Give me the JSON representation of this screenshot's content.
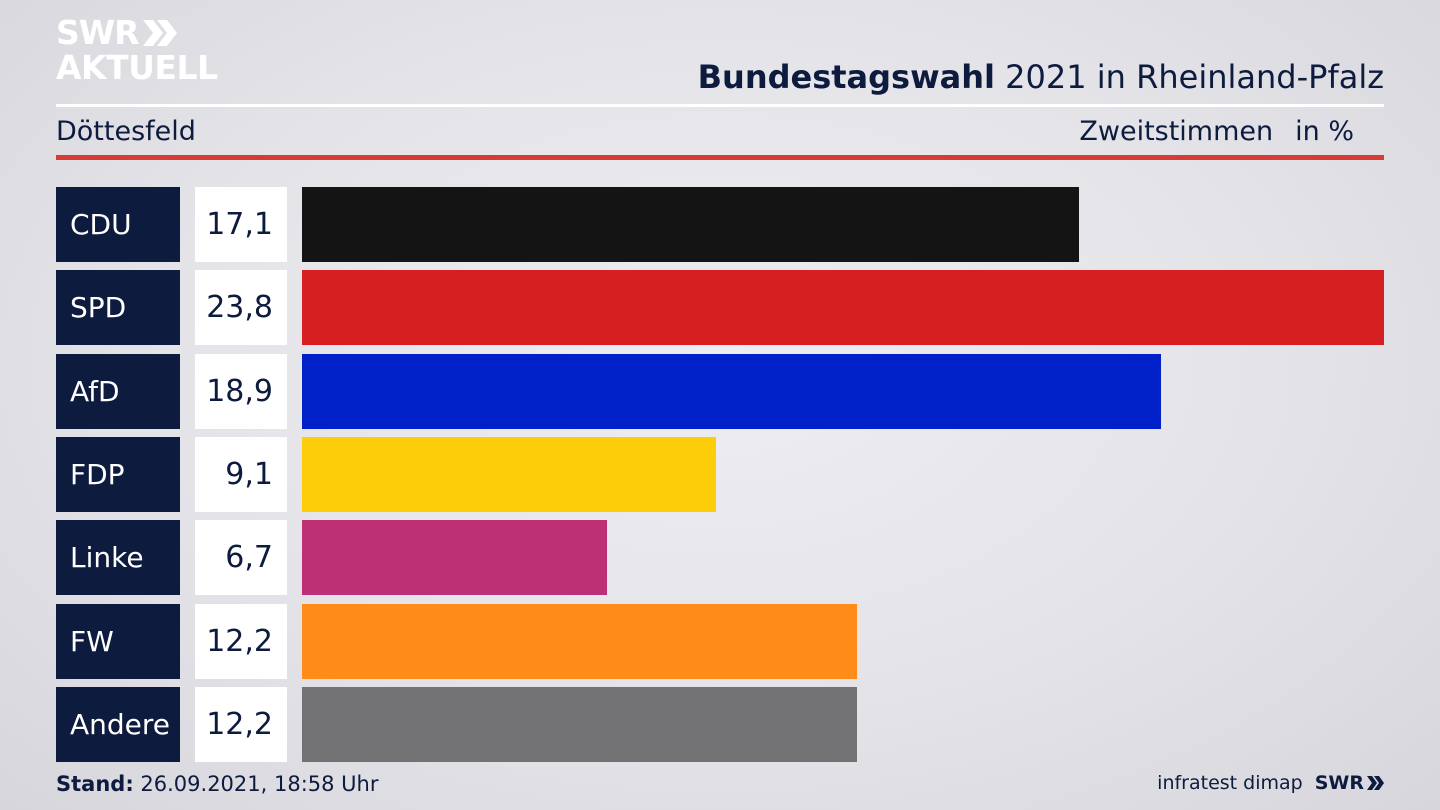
{
  "brand": {
    "logo_line1": "SWR",
    "logo_line2": "AKTUELL"
  },
  "header": {
    "title_bold": "Bundestagswahl",
    "title_rest": " 2021 in Rheinland-Pfalz",
    "region": "Döttesfeld",
    "vote_type": "Zweitstimmen",
    "unit": "in %"
  },
  "chart_data": {
    "type": "bar",
    "orientation": "horizontal",
    "categories": [
      "CDU",
      "SPD",
      "AfD",
      "FDP",
      "Linke",
      "FW",
      "Andere"
    ],
    "values": [
      17.1,
      23.8,
      18.9,
      9.1,
      6.7,
      12.2,
      12.2
    ],
    "value_labels": [
      "17,1",
      "23,8",
      "18,9",
      "9,1",
      "6,7",
      "12,2",
      "12,2"
    ],
    "colors": [
      "#141414",
      "#d51f20",
      "#0021c8",
      "#fecd0a",
      "#bd3075",
      "#ff8c18",
      "#727275"
    ],
    "xlim": [
      0,
      23.8
    ]
  },
  "footer": {
    "stand_label": "Stand:",
    "stand_value": " 26.09.2021, 18:58 Uhr",
    "source": "infratest dimap",
    "broadcaster": "SWR"
  }
}
